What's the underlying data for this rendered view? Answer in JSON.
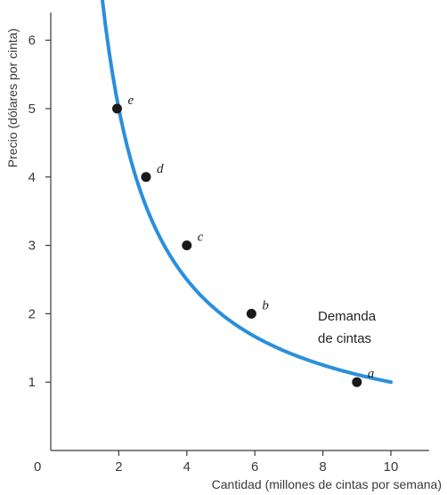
{
  "chart_data": {
    "type": "line",
    "title": "",
    "xlabel": "Cantidad (millones de cintas por semana)",
    "ylabel": "Precio (dólares por cinta)",
    "xlim": [
      0,
      11
    ],
    "ylim": [
      0,
      6.5
    ],
    "x_ticks": [
      2,
      4,
      6,
      8,
      10
    ],
    "y_ticks": [
      1,
      2,
      3,
      4,
      5,
      6
    ],
    "origin_label": "0",
    "grid": false,
    "curve_color": "#2a8fdc",
    "point_color": "#1a1a1a",
    "series": [
      {
        "name": "Demanda de cintas",
        "name_lines": [
          "Demanda",
          "de cintas"
        ],
        "curve_x_range": [
          1.5,
          10
        ],
        "curve_formula_k": 10,
        "points": [
          {
            "label": "a",
            "x": 9,
            "y": 1
          },
          {
            "label": "b",
            "x": 5.9,
            "y": 2
          },
          {
            "label": "c",
            "x": 4,
            "y": 3
          },
          {
            "label": "d",
            "x": 2.8,
            "y": 4
          },
          {
            "label": "e",
            "x": 1.95,
            "y": 5
          }
        ]
      }
    ]
  }
}
